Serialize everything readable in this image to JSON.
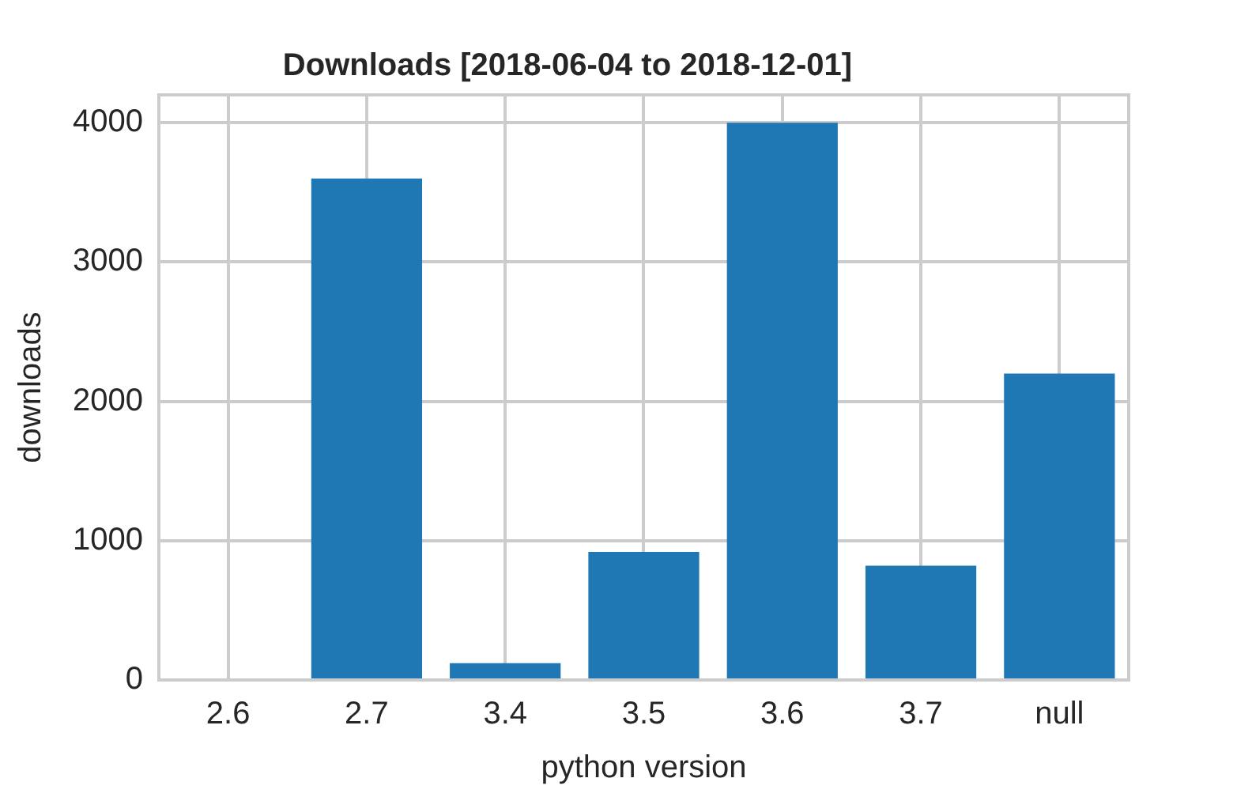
{
  "chart_data": {
    "type": "bar",
    "title": "Downloads [2018-06-04 to 2018-12-01]",
    "xlabel": "python version",
    "ylabel": "downloads",
    "categories": [
      "2.6",
      "2.7",
      "3.4",
      "3.5",
      "3.6",
      "3.7",
      "null"
    ],
    "values": [
      0,
      3600,
      120,
      920,
      4000,
      820,
      2200
    ],
    "color": "#1f77b4",
    "ylim": [
      0,
      4200
    ],
    "yticks": [
      0,
      1000,
      2000,
      3000,
      4000
    ],
    "grid": true
  }
}
